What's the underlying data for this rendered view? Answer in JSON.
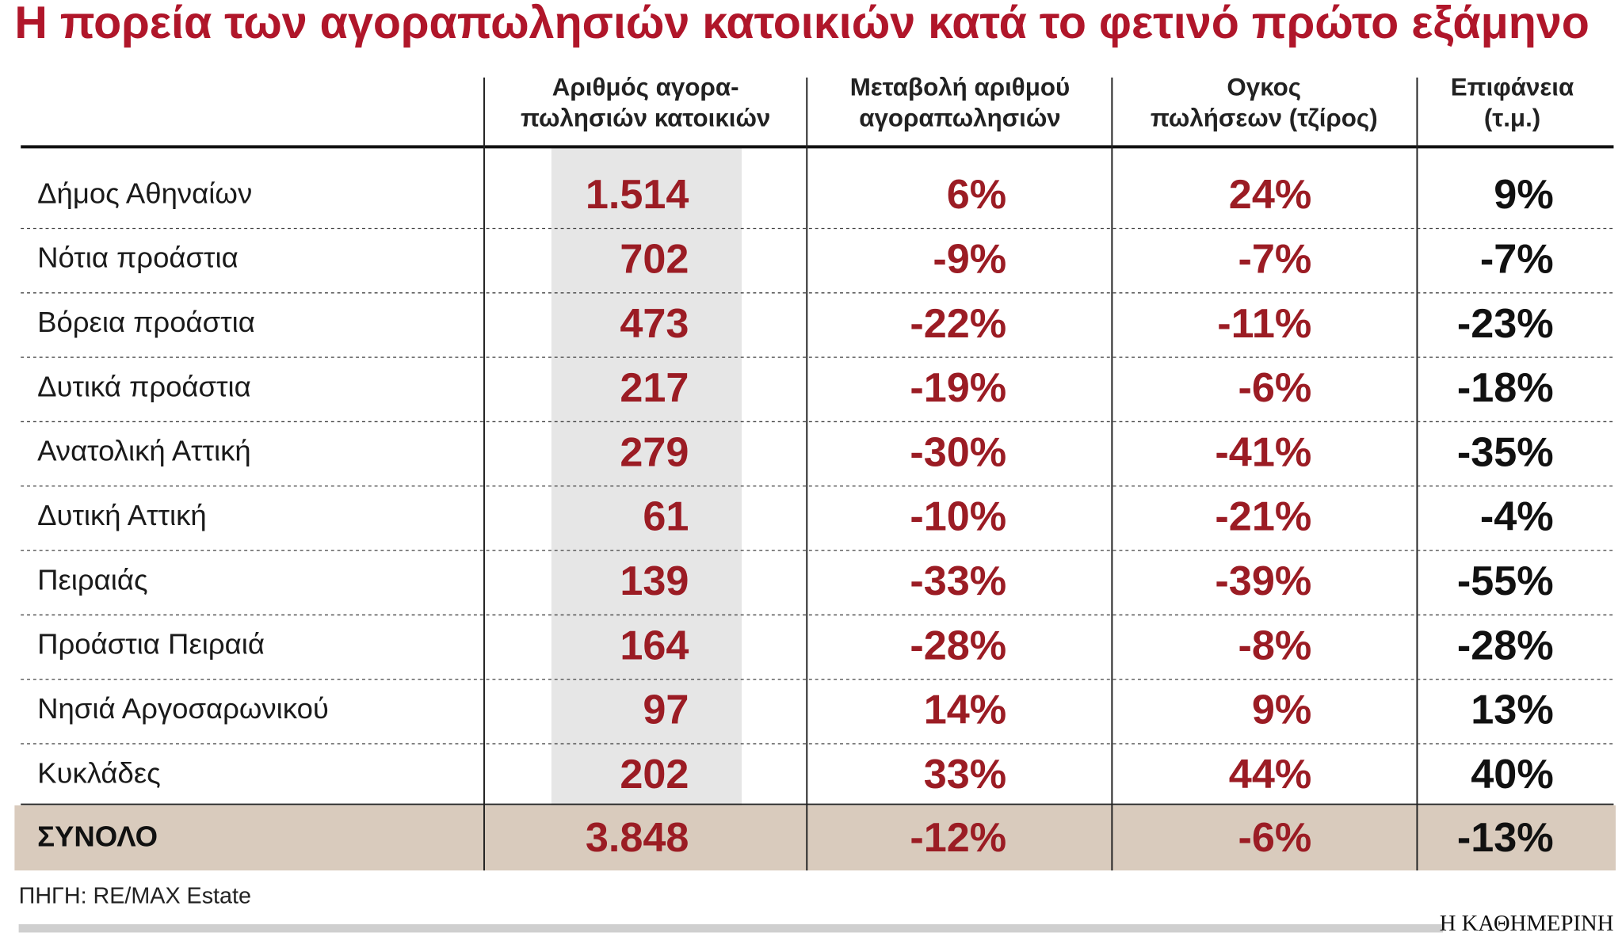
{
  "title": "Η πορεία των αγοραπωλησιών κατοικιών κατά το φετινό πρώτο εξάμηνο",
  "table": {
    "header": [
      [
        "Αριθμός αγορα-",
        "πωλησιών κατοικιών"
      ],
      [
        "Μεταβολή αριθμού",
        "αγοραπωλησιών"
      ],
      [
        "Ογκος",
        "πωλήσεων (τζίρος)"
      ],
      [
        "Επιφάνεια",
        "(τ.μ.)"
      ]
    ],
    "rows": [
      [
        "Δήμος Αθηναίων",
        "1.514",
        "6%",
        "24%",
        "9%"
      ],
      [
        "Νότια προάστια",
        "702",
        "-9%",
        "-7%",
        "-7%"
      ],
      [
        "Βόρεια προάστια",
        "473",
        "-22%",
        "-11%",
        "-23%"
      ],
      [
        "Δυτικά προάστια",
        "217",
        "-19%",
        "-6%",
        "-18%"
      ],
      [
        "Ανατολική Αττική",
        "279",
        "-30%",
        "-41%",
        "-35%"
      ],
      [
        "Δυτική Αττική",
        "61",
        "-10%",
        "-21%",
        "-4%"
      ],
      [
        "Πειραιάς",
        "139",
        "-33%",
        "-39%",
        "-55%"
      ],
      [
        "Προάστια Πειραιά",
        "164",
        "-28%",
        "-8%",
        "-28%"
      ],
      [
        "Νησιά Αργοσαρωνικού",
        "97",
        "14%",
        "9%",
        "13%"
      ],
      [
        "Κυκλάδες",
        "202",
        "33%",
        "44%",
        "40%"
      ]
    ],
    "total": [
      "ΣΥΝΟΛΟ",
      "3.848",
      "-12%",
      "-6%",
      "-13%"
    ]
  },
  "source": "ΠΗΓΗ: RE/MAX Estate",
  "brand": "Η ΚΑΘΗΜΕΡΙΝΗ"
}
